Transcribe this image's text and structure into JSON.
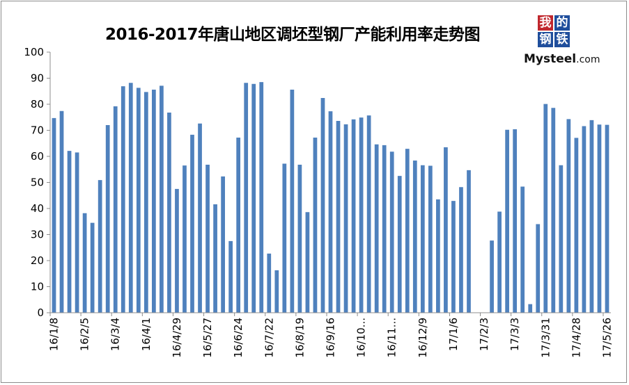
{
  "title": "2016-2017年唐山地区调坯型钢厂产能利用率走势图",
  "logo": {
    "chars": [
      "我",
      "的",
      "钢",
      "铁"
    ],
    "text_main": "Mysteel",
    "text_suffix": ".com",
    "colors": {
      "tl": "#c0272d",
      "tr": "#1f4e9c",
      "bl": "#1f4e9c",
      "br": "#1f4e9c"
    }
  },
  "chart_data": {
    "type": "bar",
    "ylim": [
      0,
      100
    ],
    "yticks": [
      0,
      10,
      20,
      30,
      40,
      50,
      60,
      70,
      80,
      90,
      100
    ],
    "bar_color": "#4f81bd",
    "grid": false,
    "xtick_labels": [
      "16/1/8",
      "16/2/5",
      "16/3/4",
      "16/4/1",
      "16/4/29",
      "16/5/27",
      "16/6/24",
      "16/7/22",
      "16/8/19",
      "16/9/16",
      "16/10...",
      "16/11...",
      "16/12/9",
      "17/1/6",
      "17/2/3",
      "17/3/3",
      "17/3/31",
      "17/4/28",
      "17/5/26"
    ],
    "values": [
      74.7,
      77.4,
      62.1,
      61.5,
      38.2,
      34.5,
      50.9,
      72.0,
      79.2,
      86.9,
      88.2,
      86.3,
      84.7,
      85.6,
      87.1,
      76.8,
      47.5,
      56.5,
      68.3,
      72.6,
      56.8,
      41.6,
      52.3,
      27.5,
      67.2,
      88.2,
      87.8,
      88.5,
      22.7,
      16.3,
      57.2,
      85.6,
      56.8,
      38.6,
      67.2,
      82.4,
      77.3,
      73.6,
      72.3,
      74.2,
      74.9,
      75.7,
      64.6,
      64.3,
      61.8,
      52.5,
      62.9,
      58.4,
      56.6,
      56.4,
      43.5,
      63.5,
      42.9,
      48.2,
      54.7,
      null,
      null,
      27.7,
      38.8,
      70.2,
      70.4,
      48.4,
      3.3,
      34.0,
      80.1,
      78.6,
      56.6,
      74.3,
      67.1,
      71.6,
      73.9,
      72.2,
      72.1
    ]
  }
}
